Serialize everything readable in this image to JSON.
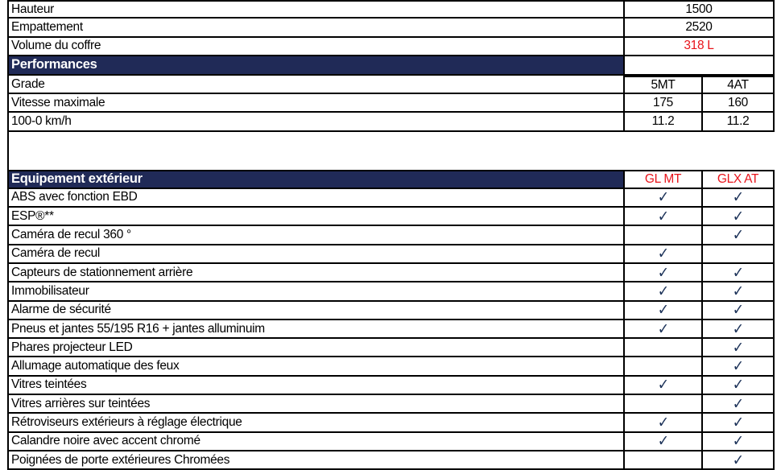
{
  "dimensions": [
    {
      "label": "Hauteur",
      "value": "1500"
    },
    {
      "label": "Empattement",
      "value": "2520"
    },
    {
      "label": "Volume du coffre",
      "value": "318 L",
      "highlight": "#e8141b"
    }
  ],
  "performances": {
    "title": "Performances",
    "rows": [
      {
        "label": "Grade",
        "v1": "5MT",
        "v2": "4AT"
      },
      {
        "label": "Vitesse maximale",
        "v1": "175",
        "v2": "160"
      },
      {
        "label": "100-0 km/h",
        "v1": "11.2",
        "v2": "11.2"
      }
    ]
  },
  "exterior": {
    "title": "Equipement extérieur",
    "col1": "GL MT",
    "col2": "GLX AT",
    "header_color": "#202a57",
    "check_icon": "checkmark-icon",
    "check_glyph": "✓",
    "rows": [
      {
        "label": "ABS avec fonction EBD",
        "gl": true,
        "glx": true
      },
      {
        "label": "ESP®**",
        "gl": true,
        "glx": true
      },
      {
        "label": "Caméra de recul 360 °",
        "gl": false,
        "glx": true
      },
      {
        "label": "Caméra de recul",
        "gl": true,
        "glx": false
      },
      {
        "label": "Capteurs de stationnement arrière",
        "gl": true,
        "glx": true
      },
      {
        "label": "Immobilisateur",
        "gl": true,
        "glx": true
      },
      {
        "label": "Alarme de sécurité",
        "gl": true,
        "glx": true
      },
      {
        "label": "Pneus et jantes 55/195 R16 + jantes alluminuim",
        "gl": true,
        "glx": true
      },
      {
        "label": "Phares projecteur LED",
        "gl": false,
        "glx": true
      },
      {
        "label": "Allumage automatique des feux",
        "gl": false,
        "glx": true
      },
      {
        "label": "Vitres teintées",
        "gl": true,
        "glx": true
      },
      {
        "label": "Vitres arrières sur teintées",
        "gl": false,
        "glx": true
      },
      {
        "label": "Rétroviseurs extérieurs à réglage électrique",
        "gl": true,
        "glx": true
      },
      {
        "label": "Calandre noire avec accent chromé",
        "gl": true,
        "glx": true
      },
      {
        "label": "Poignées de porte extérieures Chromées",
        "gl": false,
        "glx": true
      }
    ]
  }
}
